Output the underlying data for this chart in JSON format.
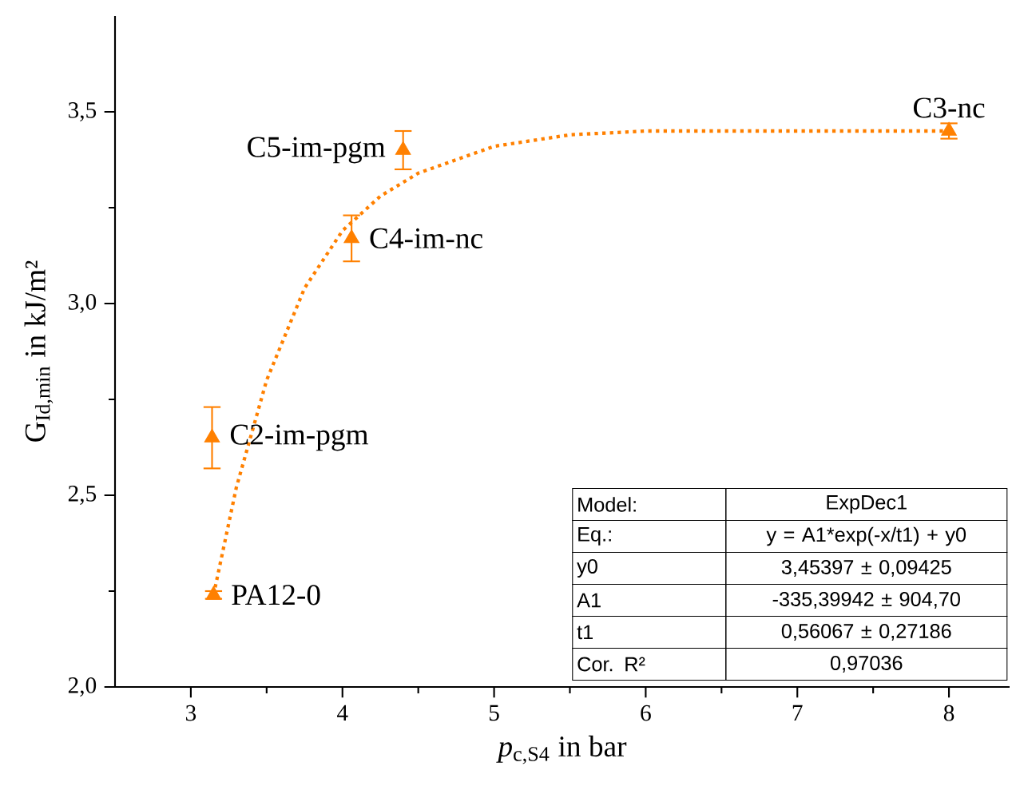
{
  "chart_data": {
    "type": "scatter",
    "xlabel": "*p*$_{c,S4}$ in bar",
    "ylabel": "G$_{Id,min}$ in kJ/m²",
    "xlim": [
      2.5,
      8.4
    ],
    "ylim": [
      2.0,
      3.75
    ],
    "xticks": [
      3,
      4,
      5,
      6,
      7,
      8
    ],
    "yticks": [
      {
        "value": 2.0,
        "label": "2,0"
      },
      {
        "value": 2.5,
        "label": "2,5"
      },
      {
        "value": 3.0,
        "label": "3,0"
      },
      {
        "value": 3.5,
        "label": "3,5"
      }
    ],
    "grid": false,
    "marker": "triangle",
    "series": [
      {
        "color": "#ff8000",
        "x": [
          3.15,
          3.14,
          4.06,
          4.4,
          8.0
        ],
        "values": [
          2.24,
          2.65,
          3.17,
          3.4,
          3.45
        ],
        "errors": [
          0.01,
          0.08,
          0.06,
          0.05,
          0.02
        ]
      },
      {
        "type": "line",
        "line_style": "dotted",
        "marker": "none",
        "color": "#ff8000",
        "x": [
          3.15,
          3.3,
          3.5,
          3.75,
          4.0,
          4.25,
          4.5,
          5.0,
          5.5,
          6.0,
          7.0,
          8.0
        ],
        "values": [
          2.24,
          2.52,
          2.8,
          3.04,
          3.19,
          3.28,
          3.34,
          3.41,
          3.44,
          3.45,
          3.45,
          3.45
        ]
      }
    ],
    "annotations": [
      {
        "text": "PA12-0",
        "x": 3.15,
        "y": 2.24
      },
      {
        "text": "C2-im-pgm",
        "x": 3.14,
        "y": 2.65
      },
      {
        "text": "C4-im-nc",
        "x": 4.06,
        "y": 3.17
      },
      {
        "text": "C5-im-pgm",
        "x": 4.4,
        "y": 3.4
      },
      {
        "text": "C3-nc",
        "x": 8.0,
        "y": 3.45
      },
      "Model:",
      "ExpDec1",
      "Eq.:",
      "y = A1*exp(-x/t1) + y0",
      "y0",
      "3,45397 ± 0,09425",
      "A1",
      "-335,39942 ± 904,70",
      "t1",
      "0,56067 ± 0,27186",
      "Cor. R²",
      "0,97036"
    ]
  }
}
